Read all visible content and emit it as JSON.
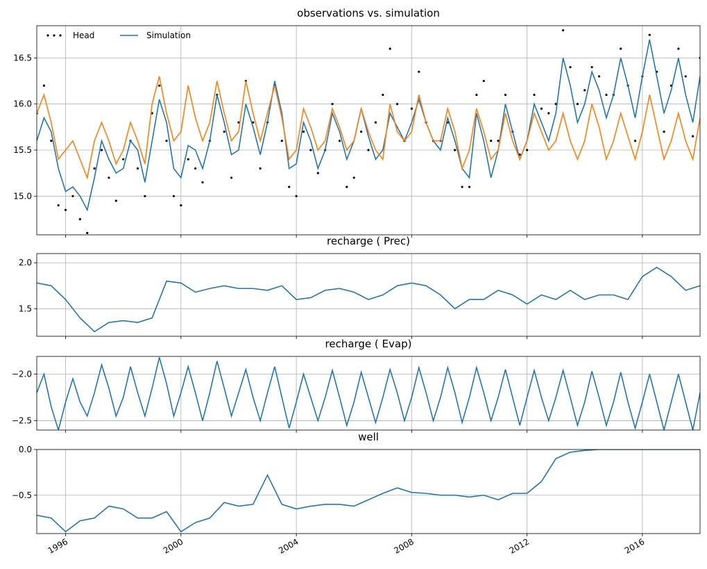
{
  "chart_data": [
    {
      "type": "line",
      "title": "observations vs. simulation",
      "grid": true,
      "legend": "upper left",
      "xlim": [
        1995,
        2018
      ],
      "xticks": [
        1996,
        2000,
        2004,
        2008,
        2012,
        2016
      ],
      "ylim": [
        14.58,
        16.85
      ],
      "yticks": [
        {
          "value": 15.0,
          "label": "15.0"
        },
        15.5,
        {
          "value": 16.0,
          "label": "16.0"
        },
        16.5
      ],
      "x": [
        1995,
        1995.25,
        1995.5,
        1995.75,
        1996,
        1996.25,
        1996.5,
        1996.75,
        1997,
        1997.25,
        1997.5,
        1997.75,
        1998,
        1998.25,
        1998.5,
        1998.75,
        1999,
        1999.25,
        1999.5,
        1999.75,
        2000,
        2000.25,
        2000.5,
        2000.75,
        2001,
        2001.25,
        2001.5,
        2001.75,
        2002,
        2002.25,
        2002.5,
        2002.75,
        2003,
        2003.25,
        2003.5,
        2003.75,
        2004,
        2004.25,
        2004.5,
        2004.75,
        2005,
        2005.25,
        2005.5,
        2005.75,
        2006,
        2006.25,
        2006.5,
        2006.75,
        2007,
        2007.25,
        2007.5,
        2007.75,
        2008,
        2008.25,
        2008.5,
        2008.75,
        2009,
        2009.25,
        2009.5,
        2009.75,
        2010,
        2010.25,
        2010.5,
        2010.75,
        2011,
        2011.25,
        2011.5,
        2011.75,
        2012,
        2012.25,
        2012.5,
        2012.75,
        2013,
        2013.25,
        2013.5,
        2013.75,
        2014,
        2014.25,
        2014.5,
        2014.75,
        2015,
        2015.25,
        2015.5,
        2015.75,
        2016,
        2016.25,
        2016.5,
        2016.75,
        2017,
        2017.25,
        2017.5,
        2017.75,
        2018
      ],
      "series": [
        {
          "name": "Head",
          "style": "dots",
          "color": "#000000",
          "values": [
            15.9,
            16.2,
            15.6,
            14.9,
            14.85,
            15.0,
            14.75,
            14.6,
            15.3,
            15.5,
            15.2,
            14.95,
            15.4,
            15.6,
            15.3,
            15.0,
            15.9,
            16.2,
            15.6,
            15.0,
            14.9,
            15.4,
            15.3,
            15.15,
            15.6,
            16.1,
            15.7,
            15.2,
            15.8,
            16.25,
            15.8,
            15.3,
            15.8,
            16.2,
            15.6,
            15.1,
            15.0,
            15.7,
            15.5,
            15.25,
            15.5,
            16.0,
            15.6,
            15.1,
            15.2,
            15.7,
            15.5,
            15.8,
            16.1,
            16.6,
            16.0,
            15.6,
            15.95,
            16.35,
            15.8,
            15.6,
            15.6,
            15.8,
            15.5,
            15.1,
            15.1,
            16.1,
            16.25,
            15.6,
            15.6,
            16.1,
            15.7,
            15.45,
            15.5,
            16.1,
            15.95,
            15.9,
            16.0,
            16.8,
            16.4,
            16.0,
            16.15,
            16.4,
            16.3,
            16.1,
            16.1,
            16.6,
            16.2,
            15.6,
            16.3,
            16.75,
            16.35,
            15.7,
            16.2,
            16.6,
            16.3,
            15.65,
            16.5
          ]
        },
        {
          "name": "Simulation",
          "style": "line",
          "color": "#1f77b4",
          "values": [
            15.6,
            15.85,
            15.7,
            15.3,
            15.05,
            15.1,
            15.0,
            14.85,
            15.2,
            15.6,
            15.4,
            15.25,
            15.3,
            15.6,
            15.5,
            15.15,
            15.6,
            16.05,
            15.8,
            15.3,
            15.2,
            15.55,
            15.5,
            15.3,
            15.6,
            16.1,
            15.8,
            15.45,
            15.5,
            16.0,
            15.75,
            15.45,
            15.8,
            16.25,
            15.9,
            15.3,
            15.35,
            15.8,
            15.6,
            15.3,
            15.5,
            15.9,
            15.7,
            15.4,
            15.6,
            15.95,
            15.65,
            15.4,
            15.5,
            15.9,
            15.75,
            15.6,
            15.8,
            16.05,
            15.8,
            15.6,
            15.5,
            15.85,
            15.6,
            15.3,
            15.2,
            15.9,
            15.6,
            15.2,
            15.5,
            16.0,
            15.7,
            15.4,
            15.6,
            16.0,
            15.8,
            15.6,
            15.9,
            16.5,
            16.2,
            15.8,
            16.0,
            16.35,
            16.15,
            15.85,
            16.1,
            16.5,
            16.2,
            15.85,
            16.3,
            16.7,
            16.3,
            15.9,
            16.15,
            16.5,
            16.1,
            15.8,
            16.3
          ]
        },
        {
          "style": "line",
          "color": "#ff7f0e",
          "values": [
            15.9,
            16.1,
            15.8,
            15.4,
            15.5,
            15.6,
            15.4,
            15.2,
            15.6,
            15.8,
            15.6,
            15.35,
            15.5,
            15.8,
            15.6,
            15.35,
            16.0,
            16.3,
            15.9,
            15.6,
            15.7,
            16.2,
            15.85,
            15.6,
            15.8,
            16.25,
            15.9,
            15.6,
            15.7,
            16.25,
            15.9,
            15.6,
            15.9,
            16.2,
            15.85,
            15.4,
            15.5,
            15.95,
            15.75,
            15.5,
            15.6,
            15.95,
            15.75,
            15.5,
            15.6,
            15.95,
            15.7,
            15.5,
            15.4,
            16.0,
            15.7,
            15.6,
            15.7,
            16.1,
            15.8,
            15.6,
            15.6,
            15.95,
            15.7,
            15.3,
            15.5,
            15.95,
            15.7,
            15.4,
            15.5,
            15.9,
            15.6,
            15.4,
            15.6,
            15.9,
            15.7,
            15.5,
            15.6,
            15.9,
            15.6,
            15.4,
            15.6,
            16.0,
            15.75,
            15.4,
            15.6,
            15.9,
            15.65,
            15.4,
            15.7,
            16.1,
            15.75,
            15.4,
            15.6,
            15.9,
            15.6,
            15.4,
            15.85
          ]
        }
      ]
    },
    {
      "type": "line",
      "title": "recharge ( Prec)",
      "grid": true,
      "xlim": [
        1995,
        2018
      ],
      "xticks": [
        1996,
        2000,
        2004,
        2008,
        2012,
        2016
      ],
      "ylim": [
        1.2,
        2.1
      ],
      "yticks": [
        1.5,
        {
          "value": 2.0,
          "label": "2.0"
        }
      ],
      "x": [
        1995,
        1995.5,
        1996,
        1996.5,
        1997,
        1997.5,
        1998,
        1998.5,
        1999,
        1999.5,
        2000,
        2000.5,
        2001,
        2001.5,
        2002,
        2002.5,
        2003,
        2003.5,
        2004,
        2004.5,
        2005,
        2005.5,
        2006,
        2006.5,
        2007,
        2007.5,
        2008,
        2008.5,
        2009,
        2009.5,
        2010,
        2010.5,
        2011,
        2011.5,
        2012,
        2012.5,
        2013,
        2013.5,
        2014,
        2014.5,
        2015,
        2015.5,
        2016,
        2016.5,
        2017,
        2017.5,
        2018
      ],
      "series": [
        {
          "style": "line",
          "color": "#1f77b4",
          "values": [
            1.78,
            1.75,
            1.6,
            1.4,
            1.25,
            1.35,
            1.37,
            1.35,
            1.4,
            1.8,
            1.78,
            1.68,
            1.72,
            1.75,
            1.72,
            1.72,
            1.7,
            1.75,
            1.6,
            1.62,
            1.7,
            1.72,
            1.68,
            1.6,
            1.65,
            1.75,
            1.78,
            1.75,
            1.65,
            1.5,
            1.6,
            1.6,
            1.7,
            1.65,
            1.55,
            1.65,
            1.6,
            1.7,
            1.6,
            1.65,
            1.65,
            1.6,
            1.85,
            1.95,
            1.85,
            1.7,
            1.75
          ]
        }
      ]
    },
    {
      "type": "line",
      "title": "recharge ( Evap)",
      "grid": true,
      "xlim": [
        1995,
        2018
      ],
      "xticks": [
        1996,
        2000,
        2004,
        2008,
        2012,
        2016
      ],
      "ylim": [
        -2.6,
        -1.81
      ],
      "yticks": [
        {
          "value": -2.5,
          "label": "−2.5"
        },
        {
          "value": -2.0,
          "label": "−2.0"
        }
      ],
      "x": [
        1995,
        1995.25,
        1995.5,
        1995.75,
        1996,
        1996.25,
        1996.5,
        1996.75,
        1997,
        1997.25,
        1997.5,
        1997.75,
        1998,
        1998.25,
        1998.5,
        1998.75,
        1999,
        1999.25,
        1999.5,
        1999.75,
        2000,
        2000.25,
        2000.5,
        2000.75,
        2001,
        2001.25,
        2001.5,
        2001.75,
        2002,
        2002.25,
        2002.5,
        2002.75,
        2003,
        2003.25,
        2003.5,
        2003.75,
        2004,
        2004.25,
        2004.5,
        2004.75,
        2005,
        2005.25,
        2005.5,
        2005.75,
        2006,
        2006.25,
        2006.5,
        2006.75,
        2007,
        2007.25,
        2007.5,
        2007.75,
        2008,
        2008.25,
        2008.5,
        2008.75,
        2009,
        2009.25,
        2009.5,
        2009.75,
        2010,
        2010.25,
        2010.5,
        2010.75,
        2011,
        2011.25,
        2011.5,
        2011.75,
        2012,
        2012.25,
        2012.5,
        2012.75,
        2013,
        2013.25,
        2013.5,
        2013.75,
        2014,
        2014.25,
        2014.5,
        2014.75,
        2015,
        2015.25,
        2015.5,
        2015.75,
        2016,
        2016.25,
        2016.5,
        2016.75,
        2017,
        2017.25,
        2017.5,
        2017.75,
        2018
      ],
      "series": [
        {
          "style": "line",
          "color": "#1f77b4",
          "values": [
            -2.2,
            -2.0,
            -2.35,
            -2.6,
            -2.3,
            -2.05,
            -2.3,
            -2.45,
            -2.2,
            -1.9,
            -2.15,
            -2.45,
            -2.25,
            -1.92,
            -2.2,
            -2.45,
            -2.15,
            -1.82,
            -2.1,
            -2.45,
            -2.2,
            -1.92,
            -2.2,
            -2.5,
            -2.2,
            -1.86,
            -2.15,
            -2.45,
            -2.2,
            -1.95,
            -2.25,
            -2.5,
            -2.2,
            -1.92,
            -2.25,
            -2.58,
            -2.3,
            -2.0,
            -2.25,
            -2.5,
            -2.25,
            -1.96,
            -2.25,
            -2.55,
            -2.3,
            -1.98,
            -2.25,
            -2.52,
            -2.25,
            -1.95,
            -2.2,
            -2.5,
            -2.25,
            -1.93,
            -2.2,
            -2.5,
            -2.25,
            -1.93,
            -2.2,
            -2.52,
            -2.25,
            -1.93,
            -2.2,
            -2.5,
            -2.25,
            -1.95,
            -2.25,
            -2.55,
            -2.25,
            -1.96,
            -2.25,
            -2.5,
            -2.25,
            -1.96,
            -2.25,
            -2.55,
            -2.3,
            -1.97,
            -2.25,
            -2.55,
            -2.3,
            -1.98,
            -2.3,
            -2.58,
            -2.3,
            -2.0,
            -2.3,
            -2.6,
            -2.3,
            -2.0,
            -2.3,
            -2.6,
            -2.2
          ]
        }
      ]
    },
    {
      "type": "line",
      "title": "well",
      "grid": true,
      "xlim": [
        1995,
        2018
      ],
      "xticks": [
        1996,
        2000,
        2004,
        2008,
        2012,
        2016
      ],
      "ylim": [
        -0.92,
        0
      ],
      "yticks": [
        {
          "value": -0.5,
          "label": "−0.5"
        },
        {
          "value": 0,
          "label": "0.0"
        }
      ],
      "x": [
        1995,
        1995.5,
        1996,
        1996.5,
        1997,
        1997.5,
        1998,
        1998.5,
        1999,
        1999.5,
        2000,
        2000.5,
        2001,
        2001.5,
        2002,
        2002.5,
        2003,
        2003.5,
        2004,
        2004.5,
        2005,
        2005.5,
        2006,
        2006.5,
        2007,
        2007.5,
        2008,
        2008.5,
        2009,
        2009.5,
        2010,
        2010.5,
        2011,
        2011.5,
        2012,
        2012.5,
        2013,
        2013.5,
        2014,
        2014.5,
        2015,
        2015.5,
        2016,
        2016.5,
        2017,
        2017.5,
        2018
      ],
      "series": [
        {
          "style": "line",
          "color": "#1f77b4",
          "values": [
            -0.72,
            -0.75,
            -0.9,
            -0.78,
            -0.75,
            -0.62,
            -0.65,
            -0.75,
            -0.75,
            -0.68,
            -0.9,
            -0.8,
            -0.75,
            -0.58,
            -0.62,
            -0.6,
            -0.28,
            -0.6,
            -0.65,
            -0.62,
            -0.6,
            -0.6,
            -0.62,
            -0.55,
            -0.48,
            -0.42,
            -0.47,
            -0.48,
            -0.5,
            -0.5,
            -0.52,
            -0.5,
            -0.55,
            -0.48,
            -0.48,
            -0.35,
            -0.1,
            -0.03,
            -0.01,
            0,
            0,
            0,
            0,
            0,
            0,
            0,
            0
          ]
        }
      ]
    }
  ]
}
